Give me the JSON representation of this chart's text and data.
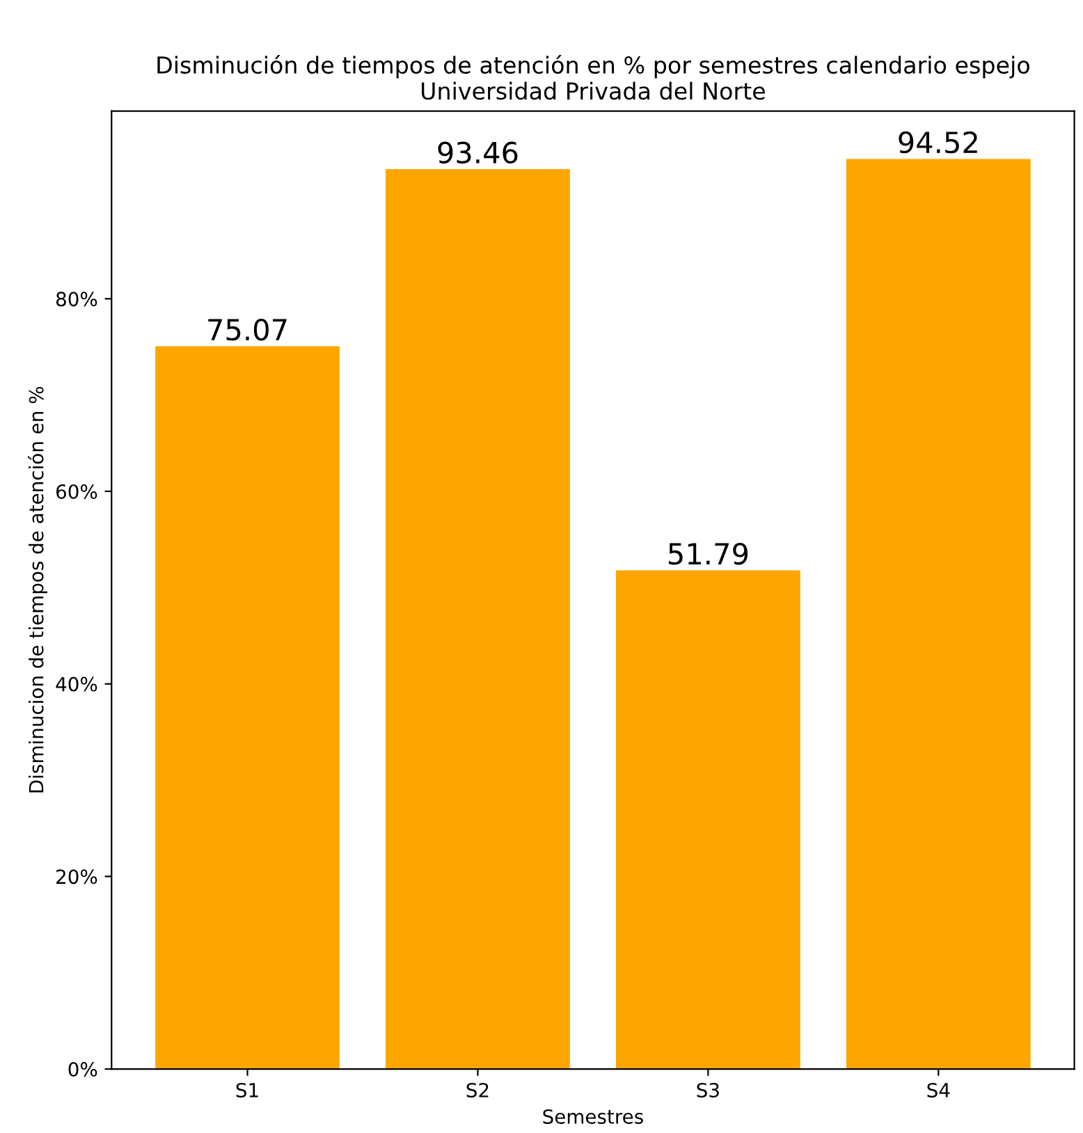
{
  "chart_data": {
    "type": "bar",
    "title": "Disminución de tiempos de atención en % por semestres calendario espejo\nUniversidad Privada del Norte",
    "xlabel": "Semestres",
    "ylabel": "Disminucion de tiempos de atención en %",
    "categories": [
      "S1",
      "S2",
      "S3",
      "S4"
    ],
    "values": [
      75.07,
      93.46,
      51.79,
      94.52
    ],
    "color": "#ffa500",
    "data_labels": true,
    "ylim": [
      0,
      99.5
    ],
    "yticks": [
      {
        "value": 0,
        "label": "0%"
      },
      {
        "value": 20,
        "label": "20%"
      },
      {
        "value": 40,
        "label": "40%"
      },
      {
        "value": 60,
        "label": "60%"
      },
      {
        "value": 80,
        "label": "80%"
      }
    ],
    "grid": false,
    "legend": false
  }
}
